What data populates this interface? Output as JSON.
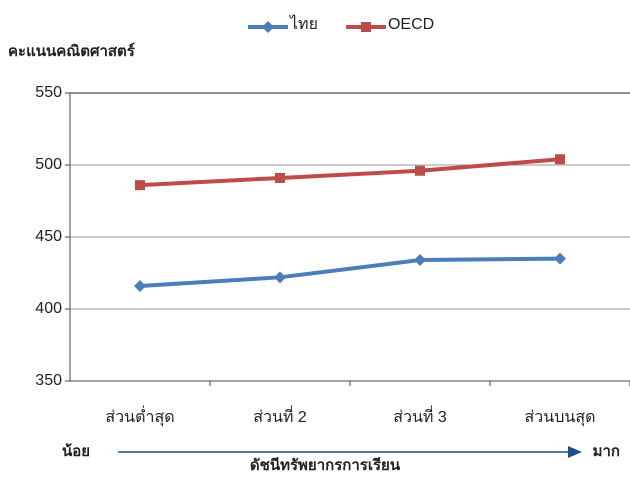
{
  "chart_data": {
    "type": "line",
    "y_label": "คะแนนคณิตศาสตร์",
    "x_label": "ดัชนีทรัพยากรการเรียน",
    "annotations": [
      "น้อย",
      "มาก"
    ],
    "categories": [
      "ส่วนต่ำสุด",
      "ส่วนที่ 2",
      "ส่วนที่ 3",
      "ส่วนบนสุด"
    ],
    "series": [
      {
        "name": "ไทย",
        "color": "#4a7ebb",
        "marker": "diamond",
        "values": [
          416,
          422,
          434,
          435
        ]
      },
      {
        "name": "OECD",
        "color": "#be4b48",
        "marker": "square",
        "values": [
          486,
          491,
          496,
          504
        ]
      }
    ],
    "ylim": [
      350,
      550
    ],
    "yticks": [
      350,
      400,
      450,
      500,
      550
    ],
    "grid": true,
    "legend": "top"
  }
}
